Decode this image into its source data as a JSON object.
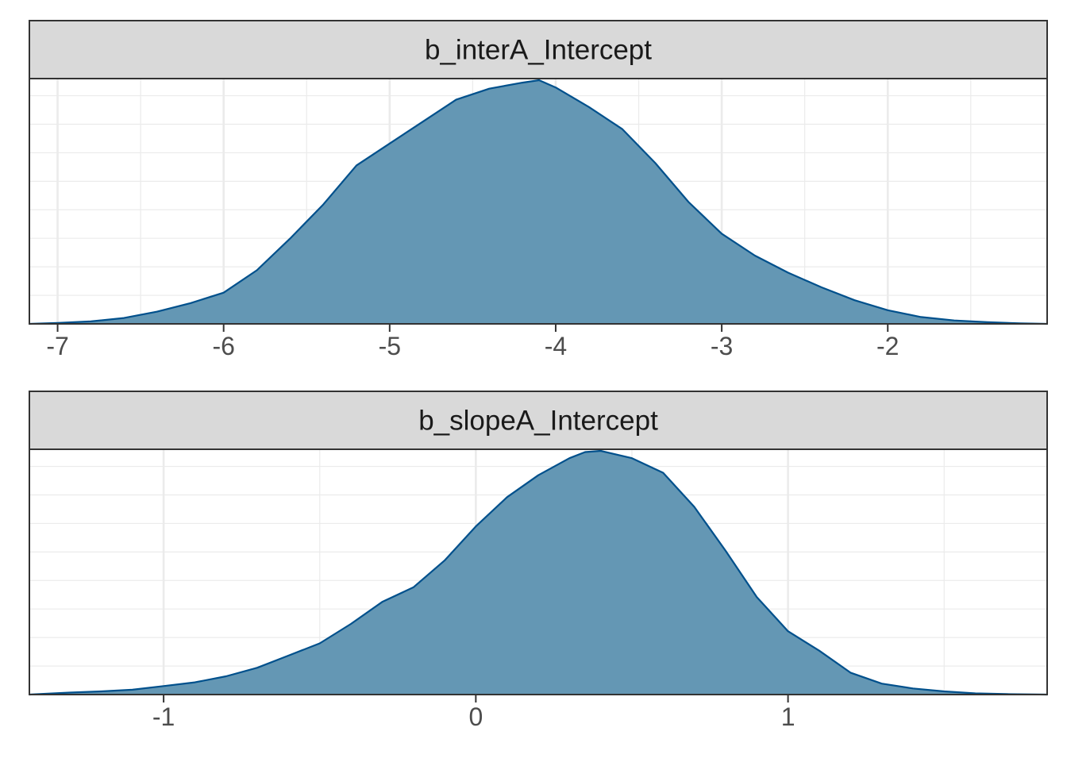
{
  "chart_data": [
    {
      "type": "area",
      "title": "b_interA_Intercept",
      "xlim": [
        -7.17,
        -1.04
      ],
      "x_ticks": [
        -7,
        -6,
        -5,
        -4,
        -3,
        -2
      ],
      "x_tick_labels": [
        "-7",
        "-6",
        "-5",
        "-4",
        "-3",
        "-2"
      ],
      "y_axis_labels_shown": false,
      "grid": true,
      "colors": {
        "fill": "#6497b4",
        "line": "#00508c",
        "strip": "#d9d9d9",
        "grid": "#ebebeb"
      },
      "density": {
        "x": [
          -7.17,
          -7.0,
          -6.8,
          -6.6,
          -6.4,
          -6.2,
          -6.0,
          -5.8,
          -5.6,
          -5.4,
          -5.2,
          -5.0,
          -4.8,
          -4.6,
          -4.4,
          -4.2,
          -4.1,
          -4.0,
          -3.8,
          -3.6,
          -3.4,
          -3.2,
          -3.0,
          -2.8,
          -2.6,
          -2.4,
          -2.2,
          -2.0,
          -1.8,
          -1.6,
          -1.4,
          -1.2,
          -1.04
        ],
        "y": [
          0.0,
          0.004,
          0.01,
          0.024,
          0.05,
          0.085,
          0.128,
          0.22,
          0.35,
          0.49,
          0.65,
          0.74,
          0.83,
          0.92,
          0.965,
          0.99,
          1.0,
          0.97,
          0.89,
          0.8,
          0.66,
          0.5,
          0.37,
          0.28,
          0.21,
          0.15,
          0.097,
          0.056,
          0.028,
          0.014,
          0.007,
          0.002,
          0.0
        ]
      }
    },
    {
      "type": "area",
      "title": "b_slopeA_Intercept",
      "xlim": [
        -1.43,
        1.83
      ],
      "x_ticks": [
        -1,
        0,
        1
      ],
      "x_tick_labels": [
        "-1",
        "0",
        "1"
      ],
      "y_axis_labels_shown": false,
      "grid": true,
      "colors": {
        "fill": "#6497b4",
        "line": "#00508c",
        "strip": "#d9d9d9",
        "grid": "#ebebeb"
      },
      "density": {
        "x": [
          -1.43,
          -1.3,
          -1.2,
          -1.1,
          -1.0,
          -0.9,
          -0.8,
          -0.7,
          -0.6,
          -0.5,
          -0.4,
          -0.3,
          -0.2,
          -0.1,
          0.0,
          0.1,
          0.2,
          0.3,
          0.35,
          0.4,
          0.5,
          0.6,
          0.7,
          0.8,
          0.9,
          1.0,
          1.1,
          1.2,
          1.3,
          1.4,
          1.5,
          1.6,
          1.7,
          1.83
        ],
        "y": [
          0.0,
          0.008,
          0.013,
          0.02,
          0.035,
          0.05,
          0.075,
          0.11,
          0.16,
          0.21,
          0.29,
          0.38,
          0.44,
          0.55,
          0.69,
          0.81,
          0.9,
          0.97,
          0.995,
          1.0,
          0.97,
          0.91,
          0.77,
          0.59,
          0.4,
          0.26,
          0.18,
          0.09,
          0.045,
          0.025,
          0.013,
          0.005,
          0.002,
          0.0
        ]
      }
    }
  ]
}
